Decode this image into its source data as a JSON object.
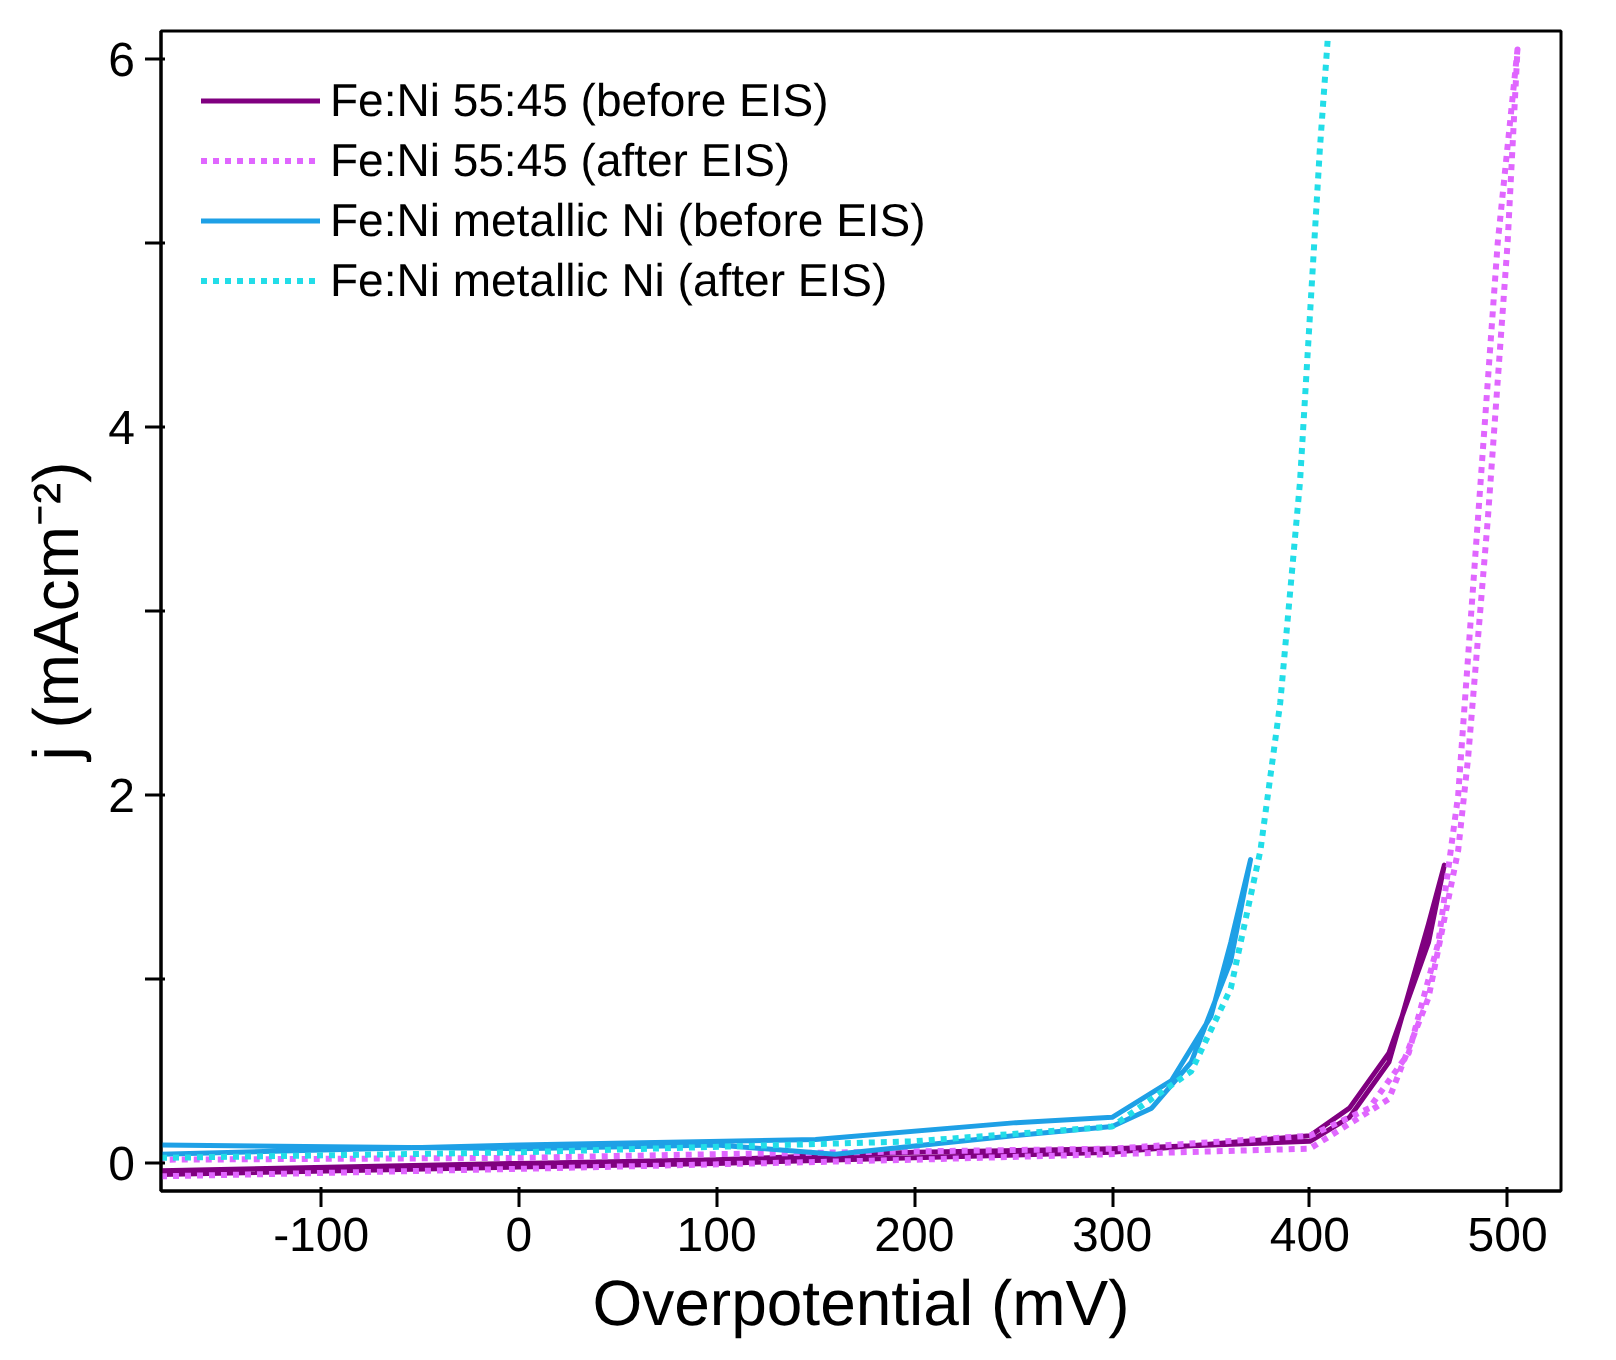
{
  "chart_data": {
    "type": "line",
    "xlabel": "Overpotential (mV)",
    "ylabel": "j (mAcm⁻²)",
    "xlim": [
      -181,
      527
    ],
    "ylim": [
      -0.15,
      6.15
    ],
    "xticks": [
      -100,
      0,
      100,
      200,
      300,
      400,
      500
    ],
    "yticks": [
      0,
      {
        "value": 1,
        "label": null
      },
      2,
      {
        "value": 3,
        "label": null
      },
      4,
      {
        "value": 5,
        "label": null
      },
      6
    ],
    "grid": false,
    "legend": "top left",
    "series": [
      {
        "name": "Fe:Ni 55:45 (before EIS)",
        "color": "#800080",
        "line_style": "solid",
        "x": [
          -181,
          0,
          100,
          200,
          300,
          400,
          420,
          440,
          460,
          468,
          460,
          440,
          420,
          400,
          300,
          200,
          100,
          0,
          -181
        ],
        "values": [
          -0.06,
          -0.02,
          0.0,
          0.03,
          0.06,
          0.15,
          0.3,
          0.6,
          1.2,
          1.62,
          1.3,
          0.55,
          0.25,
          0.12,
          0.08,
          0.06,
          0.02,
          0.0,
          -0.04
        ]
      },
      {
        "name": "Fe:Ni 55:45 (after EIS)",
        "color": "#e066ff",
        "line_style": "dotted",
        "x": [
          -181,
          0,
          200,
          400,
          440,
          460,
          475,
          480,
          490,
          500,
          505,
          495,
          485,
          475,
          465,
          450,
          430,
          400,
          300,
          100,
          0,
          -181
        ],
        "values": [
          -0.07,
          -0.03,
          0.02,
          0.08,
          0.35,
          0.9,
          1.7,
          2.2,
          3.5,
          5.0,
          6.05,
          5.0,
          3.5,
          2.0,
          1.2,
          0.6,
          0.3,
          0.15,
          0.08,
          0.05,
          0.03,
          0.02
        ]
      },
      {
        "name": "Fe:Ni metallic Ni (before EIS)",
        "color": "#1ea0e6",
        "line_style": "solid",
        "x": [
          -181,
          0,
          150,
          250,
          300,
          330,
          350,
          360,
          370,
          360,
          340,
          320,
          300,
          250,
          160,
          100,
          0,
          -181
        ],
        "values": [
          0.05,
          0.1,
          0.13,
          0.22,
          0.25,
          0.45,
          0.8,
          1.2,
          1.65,
          1.1,
          0.55,
          0.3,
          0.2,
          0.15,
          0.05,
          0.1,
          0.08,
          0.1
        ]
      },
      {
        "name": "Fe:Ni metallic Ni (after EIS)",
        "color": "#22dde8",
        "line_style": "dotted",
        "x": [
          -181,
          0,
          200,
          300,
          340,
          360,
          375,
          385,
          395,
          405,
          409
        ],
        "values": [
          0.03,
          0.06,
          0.12,
          0.2,
          0.5,
          0.95,
          1.7,
          2.5,
          3.7,
          5.5,
          6.1
        ]
      }
    ]
  }
}
